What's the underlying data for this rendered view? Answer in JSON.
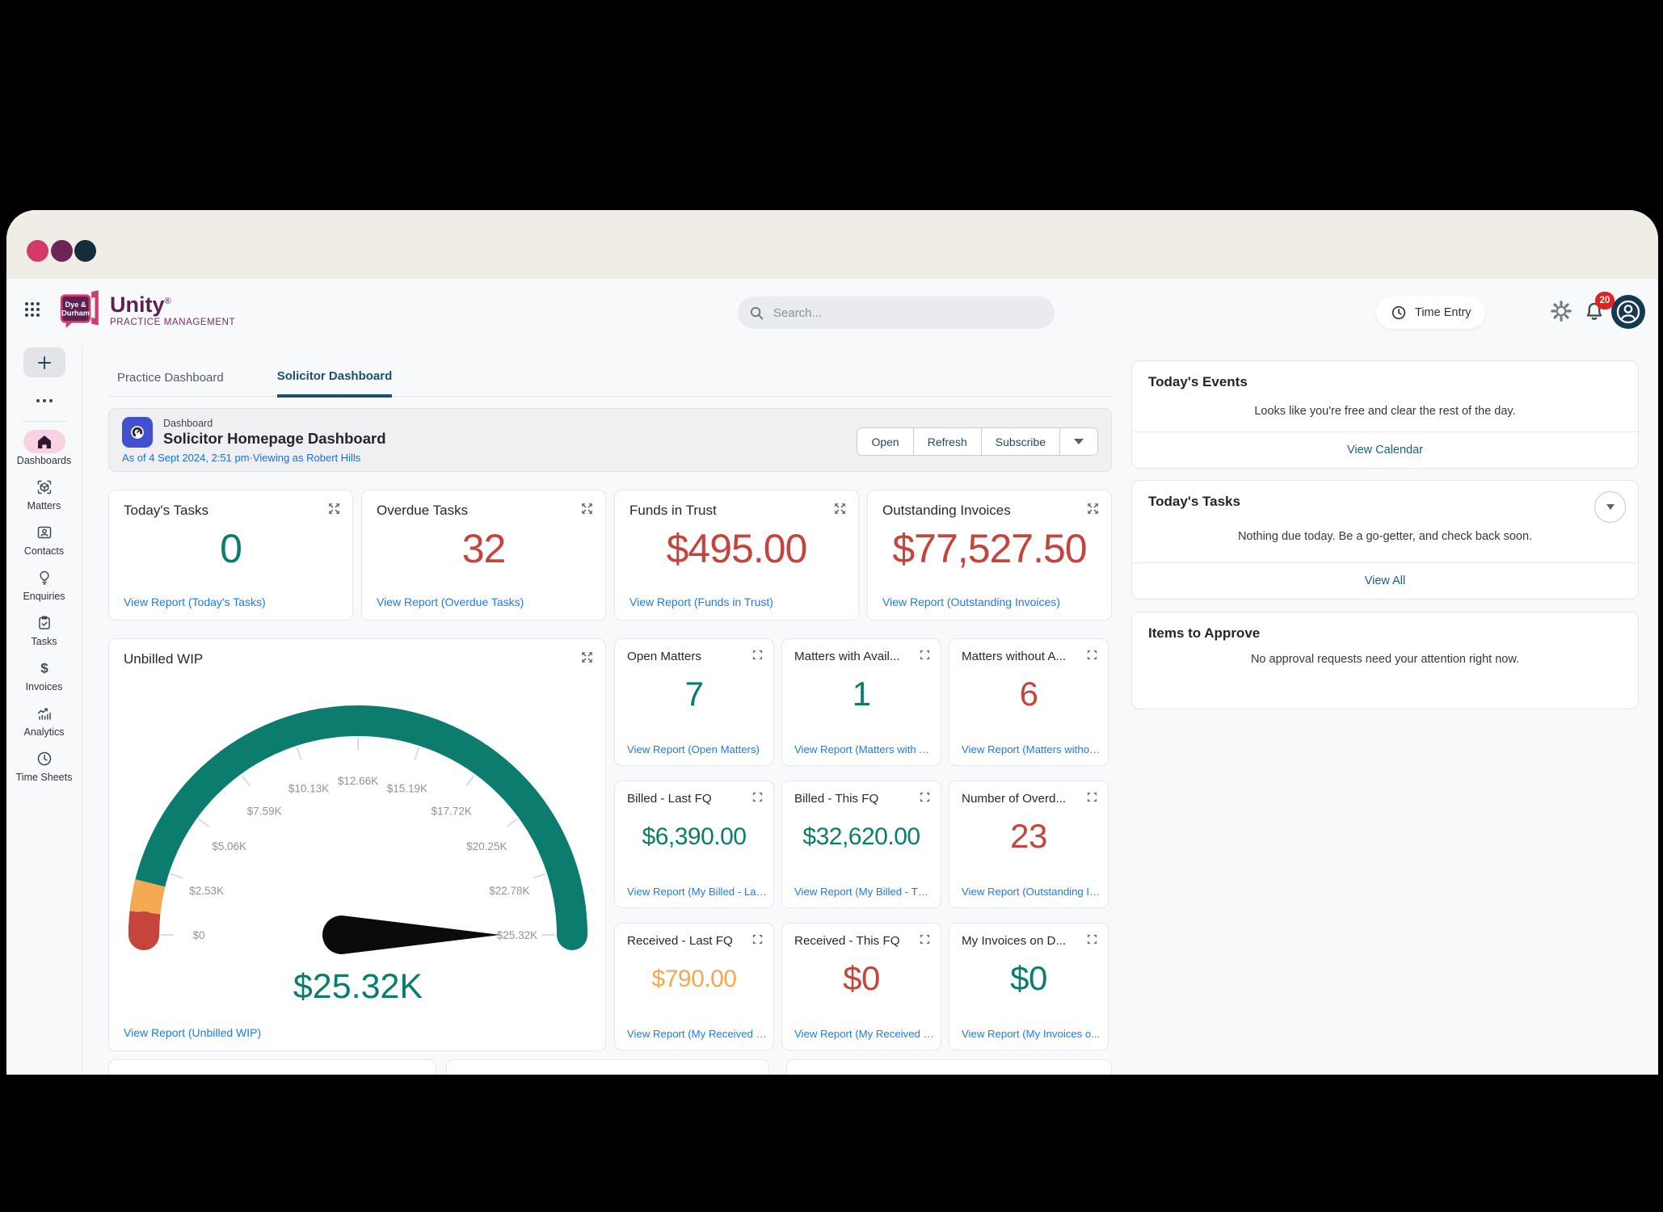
{
  "window": {
    "traffic_light_colors": [
      "#d63a6b",
      "#6d2457",
      "#152c3d"
    ]
  },
  "header": {
    "brand": {
      "badge_line1": "Dye &",
      "badge_line2": "Durham",
      "name": "Unity",
      "reg": "®",
      "tagline": "PRACTICE MANAGEMENT"
    },
    "search": {
      "placeholder": "Search..."
    },
    "time_entry_label": "Time Entry",
    "notification_count": "20"
  },
  "sidebar": {
    "items": [
      {
        "label": "Dashboards",
        "icon": "home-icon",
        "active": true
      },
      {
        "label": "Matters",
        "icon": "matters-icon",
        "active": false
      },
      {
        "label": "Contacts",
        "icon": "contacts-icon",
        "active": false
      },
      {
        "label": "Enquiries",
        "icon": "enquiries-icon",
        "active": false
      },
      {
        "label": "Tasks",
        "icon": "tasks-icon",
        "active": false
      },
      {
        "label": "Invoices",
        "icon": "invoices-icon",
        "active": false
      },
      {
        "label": "Analytics",
        "icon": "analytics-icon",
        "active": false
      },
      {
        "label": "Time Sheets",
        "icon": "time-sheets-icon",
        "active": false
      }
    ]
  },
  "tabs": [
    {
      "label": "Practice Dashboard",
      "active": false
    },
    {
      "label": "Solicitor Dashboard",
      "active": true
    }
  ],
  "dashboard_header": {
    "eyebrow": "Dashboard",
    "title": "Solicitor Homepage Dashboard",
    "as_of": "As of 4 Sept 2024, 2:51 pm·Viewing as Robert Hills",
    "buttons": [
      "Open",
      "Refresh",
      "Subscribe"
    ]
  },
  "kpi_cards": [
    {
      "title": "Today's Tasks",
      "value": "0",
      "color": "green",
      "link": "View Report (Today's Tasks)"
    },
    {
      "title": "Overdue Tasks",
      "value": "32",
      "color": "red",
      "link": "View Report (Overdue Tasks)"
    },
    {
      "title": "Funds in Trust",
      "value": "$495.00",
      "color": "red",
      "link": "View Report (Funds in Trust)"
    },
    {
      "title": "Outstanding Invoices",
      "value": "$77,527.50",
      "color": "red",
      "link": "View Report (Outstanding Invoices)"
    }
  ],
  "gauge_card": {
    "title": "Unbilled WIP",
    "link": "View Report (Unbilled WIP)"
  },
  "chart_data": {
    "type": "gauge",
    "title": "Unbilled WIP",
    "min": 0,
    "max": 25320,
    "value": 25320,
    "value_label": "$25.32K",
    "value_color": "#0a7d6c",
    "tick_labels": [
      "$0",
      "$2.53K",
      "$5.06K",
      "$7.59K",
      "$10.13K",
      "$12.66K",
      "$15.19K",
      "$17.72K",
      "$20.25K",
      "$22.78K",
      "$25.32K"
    ],
    "segments": [
      {
        "color": "#c5443c",
        "from": 0,
        "to": 0.033
      },
      {
        "color": "#f4a952",
        "from": 0.033,
        "to": 0.078
      },
      {
        "color": "#0b7c6d",
        "from": 0.078,
        "to": 1
      }
    ]
  },
  "grid_cards": [
    {
      "title": "Open Matters",
      "value": "7",
      "color": "green",
      "size": "lg",
      "link": "View Report (Open Matters)"
    },
    {
      "title": "Matters with Avail...",
      "value": "1",
      "color": "green",
      "size": "lg",
      "link": "View Report (Matters with A..."
    },
    {
      "title": "Matters without A...",
      "value": "6",
      "color": "red",
      "size": "lg",
      "link": "View Report (Matters withou..."
    },
    {
      "title": "Billed - Last FQ",
      "value": "$6,390.00",
      "color": "green",
      "size": "md",
      "link": "View Report (My Billed - Las..."
    },
    {
      "title": "Billed - This FQ",
      "value": "$32,620.00",
      "color": "green",
      "size": "md",
      "link": "View Report (My Billed - Thi..."
    },
    {
      "title": "Number of Overd...",
      "value": "23",
      "color": "red",
      "size": "lg",
      "link": "View Report (Outstanding In..."
    },
    {
      "title": "Received - Last FQ",
      "value": "$790.00",
      "color": "amber",
      "size": "md",
      "link": "View Report (My Received -..."
    },
    {
      "title": "Received - This FQ",
      "value": "$0",
      "color": "red",
      "size": "lg",
      "link": "View Report (My Received - ..."
    },
    {
      "title": "My Invoices on D...",
      "value": "$0",
      "color": "green",
      "size": "lg",
      "link": "View Report (My Invoices o..."
    }
  ],
  "right_panel": {
    "events": {
      "title": "Today's Events",
      "message": "Looks like you're free and clear the rest of the day.",
      "link": "View Calendar"
    },
    "tasks": {
      "title": "Today's Tasks",
      "message": "Nothing due today. Be a go-getter, and check back soon.",
      "link": "View All"
    },
    "approvals": {
      "title": "Items to Approve",
      "message": "No approval requests need your attention right now."
    }
  },
  "colors": {
    "positive": "#0a7d6c",
    "negative": "#c5443c",
    "warning": "#f4a952",
    "link_blue": "#1a7cec",
    "teal_link": "#1d5f82",
    "active_tab": "#1a516f",
    "brand_plum": "#5c2150",
    "brand_pink": "#d63a6b",
    "accent_indigo": "#4050cf"
  }
}
